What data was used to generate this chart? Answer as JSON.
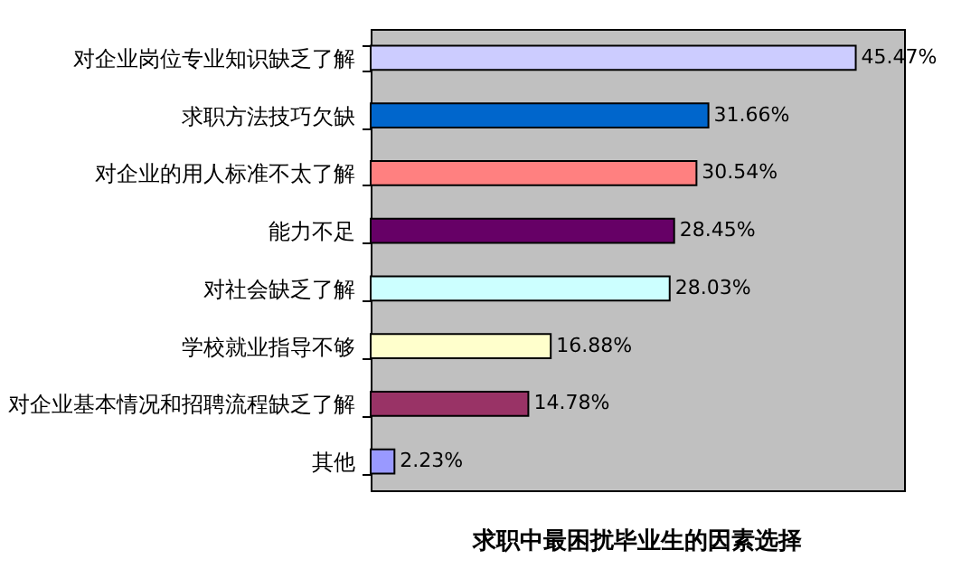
{
  "chart_data": {
    "type": "bar",
    "orientation": "horizontal",
    "title": "求职中最困扰毕业生的因素选择",
    "categories": [
      "对企业岗位专业知识缺乏了解",
      "求职方法技巧欠缺",
      "对企业的用人标准不太了解",
      "能力不足",
      "对社会缺乏了解",
      "学校就业指导不够",
      "对企业基本情况和招聘流程缺乏了解",
      "其他"
    ],
    "values": [
      45.47,
      31.66,
      30.54,
      28.45,
      28.03,
      16.88,
      14.78,
      2.23
    ],
    "value_labels": [
      "45.47%",
      "31.66%",
      "30.54%",
      "28.45%",
      "28.03%",
      "16.88%",
      "14.78%",
      "2.23%"
    ],
    "colors": [
      "#ccccff",
      "#0066cc",
      "#ff8080",
      "#660066",
      "#ccffff",
      "#ffffcc",
      "#993366",
      "#9999ff"
    ],
    "xlim": [
      0,
      50
    ],
    "tick_labels": "y",
    "grid": false
  }
}
